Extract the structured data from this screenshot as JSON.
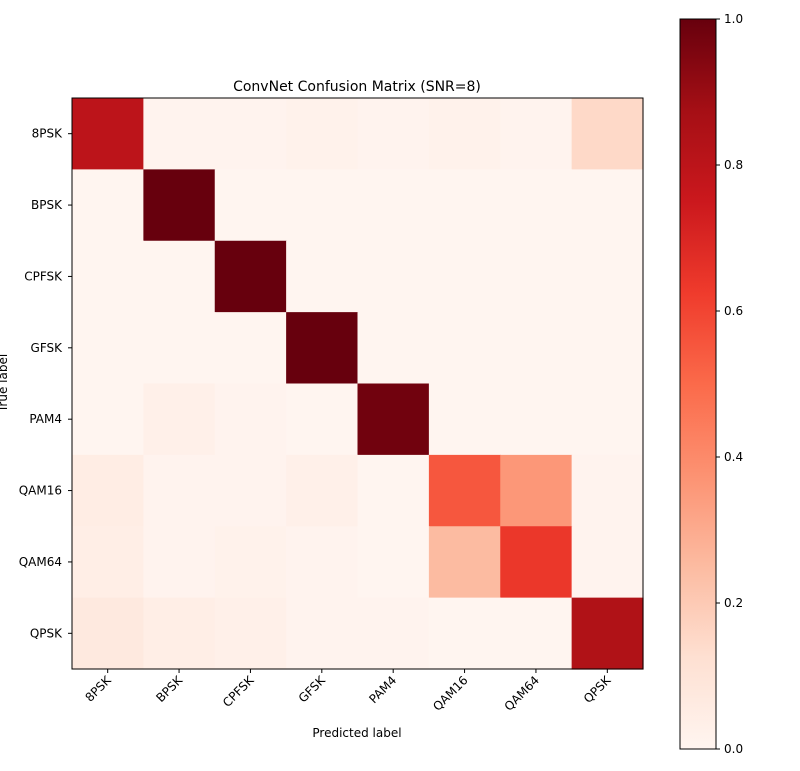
{
  "chart_data": {
    "type": "heatmap",
    "title": "ConvNet Confusion Matrix (SNR=8)",
    "xlabel": "Predicted label",
    "ylabel": "True label",
    "x_categories": [
      "8PSK",
      "BPSK",
      "CPFSK",
      "GFSK",
      "PAM4",
      "QAM16",
      "QAM64",
      "QPSK"
    ],
    "y_categories": [
      "8PSK",
      "BPSK",
      "CPFSK",
      "GFSK",
      "PAM4",
      "QAM16",
      "QAM64",
      "QPSK"
    ],
    "values": [
      [
        0.8,
        0.01,
        0.01,
        0.02,
        0.01,
        0.02,
        0.01,
        0.15
      ],
      [
        0.0,
        1.0,
        0.0,
        0.0,
        0.0,
        0.0,
        0.0,
        0.0
      ],
      [
        0.0,
        0.0,
        1.0,
        0.0,
        0.0,
        0.0,
        0.0,
        0.0
      ],
      [
        0.0,
        0.0,
        0.0,
        1.0,
        0.0,
        0.0,
        0.0,
        0.0
      ],
      [
        0.0,
        0.03,
        0.01,
        0.0,
        0.98,
        0.0,
        0.0,
        0.0
      ],
      [
        0.05,
        0.01,
        0.01,
        0.03,
        0.0,
        0.55,
        0.36,
        0.01
      ],
      [
        0.04,
        0.01,
        0.02,
        0.01,
        0.0,
        0.25,
        0.64,
        0.01
      ],
      [
        0.07,
        0.04,
        0.03,
        0.01,
        0.01,
        0.0,
        0.0,
        0.84
      ]
    ],
    "colorbar": {
      "range": [
        0.0,
        1.0
      ],
      "ticks": [
        "0.0",
        "0.2",
        "0.4",
        "0.6",
        "0.8",
        "1.0"
      ],
      "colormap": "Reds"
    },
    "grid": false
  }
}
